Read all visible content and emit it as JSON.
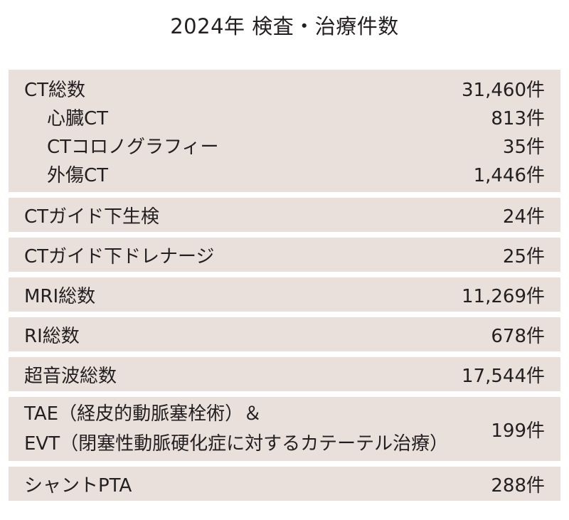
{
  "title": "2024年 検査・治療件数",
  "rows": [
    {
      "lines": [
        {
          "label": "CT総数",
          "value": "31,460件"
        },
        {
          "label": "心臓CT",
          "value": "813件"
        },
        {
          "label": "CTコロノグラフィー",
          "value": "35件"
        },
        {
          "label": "外傷CT",
          "value": "1,446件"
        }
      ]
    },
    {
      "label": "CTガイド下生検",
      "value": "24件"
    },
    {
      "label": "CTガイド下ドレナージ",
      "value": "25件"
    },
    {
      "label": "MRI総数",
      "value": "11,269件"
    },
    {
      "label": "RI総数",
      "value": "678件"
    },
    {
      "label": "超音波総数",
      "value": "17,544件"
    },
    {
      "label_line1": "TAE（経皮的動脈塞栓術）＆",
      "label_line2": "EVT（閉塞性動脈硬化症に対するカテーテル治療）",
      "value": "199件"
    },
    {
      "label": "シャントPTA",
      "value": "288件"
    }
  ]
}
